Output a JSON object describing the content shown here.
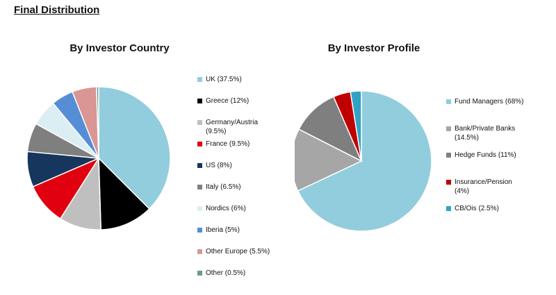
{
  "page": {
    "title": "Final Distribution"
  },
  "chart_data": [
    {
      "type": "pie",
      "title": "By Investor Country",
      "legend_position": "right",
      "slices": [
        {
          "label": "UK (37.5%)",
          "value": 37.5,
          "color": "#92cddd"
        },
        {
          "label": "Greece (12%)",
          "value": 12,
          "color": "#000000"
        },
        {
          "label": "Germany/Austria\n(9.5%)",
          "value": 9.5,
          "color": "#bfbfbf"
        },
        {
          "label": "France (9.5%)",
          "value": 9.5,
          "color": "#e0000f"
        },
        {
          "label": "US (8%)",
          "value": 8,
          "color": "#17365d"
        },
        {
          "label": "Italy (6.5%)",
          "value": 6.5,
          "color": "#7f7f7f"
        },
        {
          "label": "Nordics (6%)",
          "value": 6,
          "color": "#dbeef4"
        },
        {
          "label": "Iberia (5%)",
          "value": 5,
          "color": "#558ed5"
        },
        {
          "label": "Other Europe (5.5%)",
          "value": 5.5,
          "color": "#d99694"
        },
        {
          "label": "Other (0.5%)",
          "value": 0.5,
          "color": "#6b9a8c"
        }
      ]
    },
    {
      "type": "pie",
      "title": "By Investor Profile",
      "legend_position": "right",
      "slices": [
        {
          "label": "Fund Managers (68%)",
          "value": 68,
          "color": "#92cddd"
        },
        {
          "label": "Bank/Private Banks\n(14.5%)",
          "value": 14.5,
          "color": "#a6a6a6"
        },
        {
          "label": "Hedge Funds (11%)",
          "value": 11,
          "color": "#7f7f7f"
        },
        {
          "label": "Insurance/Pension\n(4%)",
          "value": 4,
          "color": "#c00000"
        },
        {
          "label": "CB/Ois (2.5%)",
          "value": 2.5,
          "color": "#31a2c6"
        }
      ]
    }
  ]
}
